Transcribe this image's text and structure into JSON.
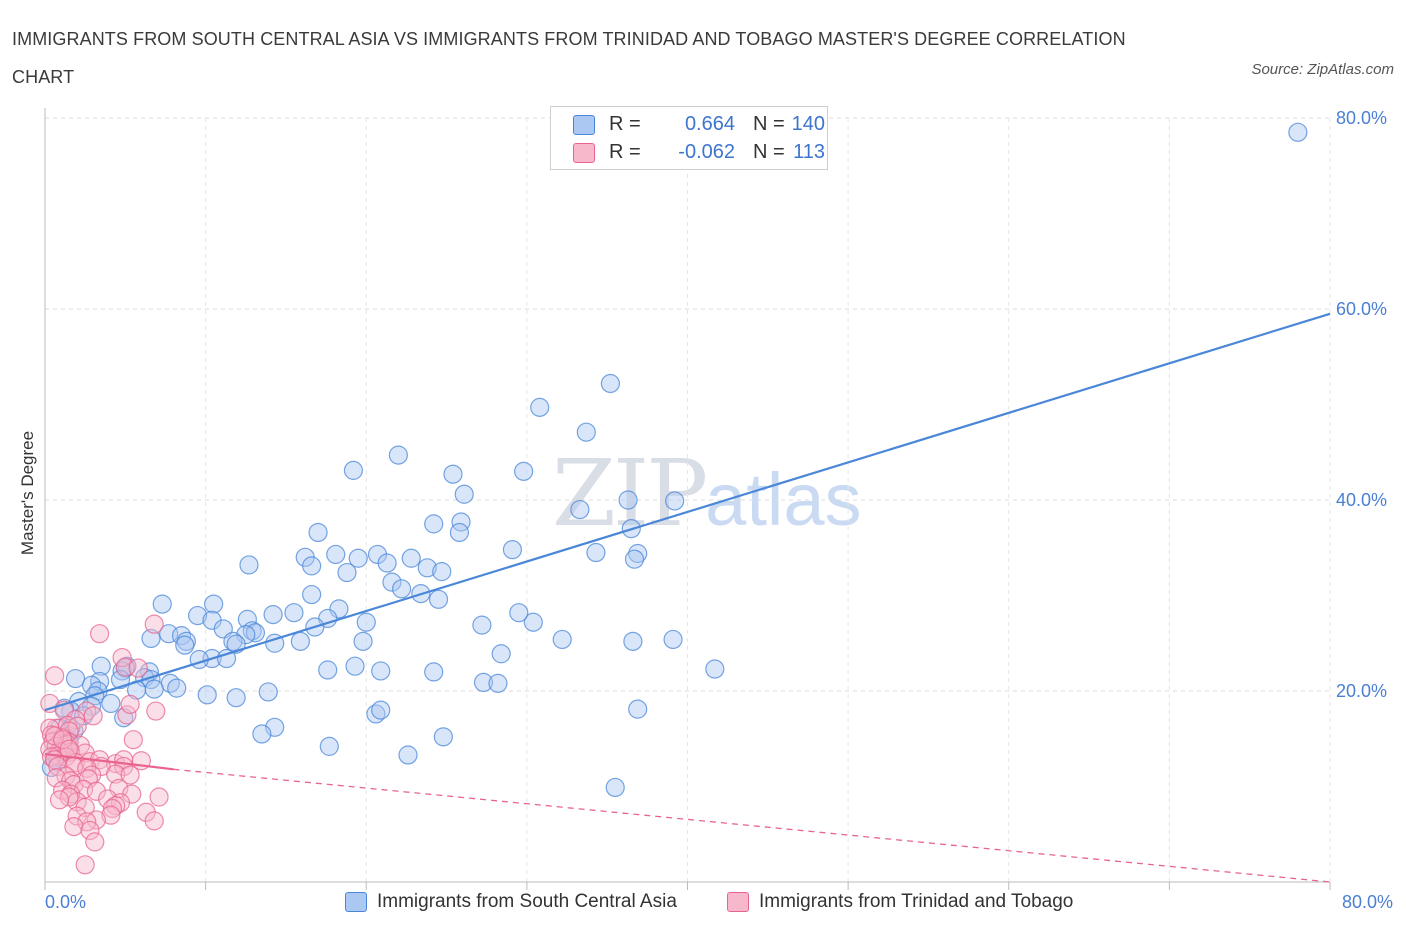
{
  "title": "IMMIGRANTS FROM SOUTH CENTRAL ASIA VS IMMIGRANTS FROM TRINIDAD AND TOBAGO MASTER'S DEGREE CORRELATION CHART",
  "source": "Source: ZipAtlas.com",
  "watermark": {
    "zip": "ZIP",
    "atlas": "atlas"
  },
  "legend": {
    "r_label": "R =",
    "n_label": "N =",
    "series": [
      {
        "r": "0.664",
        "n": "140",
        "color": "#aac8f2"
      },
      {
        "r": "-0.062",
        "n": "113",
        "color": "#f7b8cb"
      }
    ]
  },
  "chart_data": {
    "type": "scatter",
    "title": "IMMIGRANTS FROM SOUTH CENTRAL ASIA VS IMMIGRANTS FROM TRINIDAD AND TOBAGO MASTER'S DEGREE CORRELATION CHART",
    "xlabel": "",
    "ylabel": "Master's Degree",
    "xlim": [
      0,
      80
    ],
    "ylim": [
      0,
      80
    ],
    "x_tick_labels": [
      "0.0%",
      "80.0%"
    ],
    "y_ticks": [
      20,
      40,
      60,
      80
    ],
    "y_tick_labels": [
      "20.0%",
      "40.0%",
      "60.0%",
      "80.0%"
    ],
    "grid": true,
    "legend_position": "top-center",
    "series": [
      {
        "name": "Immigrants from South Central Asia",
        "color": "#4a87d8",
        "fill": "#aac8f2",
        "R": 0.664,
        "N": 140,
        "trend": {
          "x": [
            0,
            80
          ],
          "y": [
            18.0,
            59.5
          ],
          "style": "solid"
        },
        "points": [
          [
            78,
            78.5
          ],
          [
            35.2,
            52.2
          ],
          [
            30.8,
            49.7
          ],
          [
            33.7,
            47.1
          ],
          [
            22,
            44.7
          ],
          [
            19.2,
            43.1
          ],
          [
            25.4,
            42.7
          ],
          [
            29.8,
            43
          ],
          [
            26.1,
            40.6
          ],
          [
            36.3,
            40
          ],
          [
            39.2,
            39.9
          ],
          [
            33.3,
            39
          ],
          [
            24.2,
            37.5
          ],
          [
            25.9,
            37.7
          ],
          [
            36.5,
            37
          ],
          [
            25.8,
            36.6
          ],
          [
            17,
            36.6
          ],
          [
            29.1,
            34.8
          ],
          [
            34.3,
            34.5
          ],
          [
            36.9,
            34.4
          ],
          [
            36.7,
            33.8
          ],
          [
            18.1,
            34.3
          ],
          [
            19.5,
            33.9
          ],
          [
            20.7,
            34.3
          ],
          [
            22.8,
            33.9
          ],
          [
            16.2,
            34
          ],
          [
            21.3,
            33.4
          ],
          [
            12.7,
            33.2
          ],
          [
            16.6,
            33.1
          ],
          [
            23.8,
            32.9
          ],
          [
            24.7,
            32.5
          ],
          [
            18.8,
            32.4
          ],
          [
            21.6,
            31.4
          ],
          [
            22.2,
            30.7
          ],
          [
            23.4,
            30.2
          ],
          [
            24.5,
            29.6
          ],
          [
            16.6,
            30.1
          ],
          [
            18.3,
            28.6
          ],
          [
            10.5,
            29.1
          ],
          [
            15.5,
            28.2
          ],
          [
            14.2,
            28
          ],
          [
            7.3,
            29.1
          ],
          [
            9.5,
            27.9
          ],
          [
            12.6,
            27.5
          ],
          [
            20,
            27.2
          ],
          [
            17.6,
            27.6
          ],
          [
            10.4,
            27.4
          ],
          [
            11.1,
            26.5
          ],
          [
            16.8,
            26.7
          ],
          [
            12.9,
            26.3
          ],
          [
            7.7,
            26
          ],
          [
            8.5,
            25.8
          ],
          [
            13.1,
            26.1
          ],
          [
            12.5,
            25.9
          ],
          [
            6.6,
            25.5
          ],
          [
            15.9,
            25.2
          ],
          [
            14.3,
            25
          ],
          [
            11.7,
            25.2
          ],
          [
            19.8,
            25.2
          ],
          [
            8.8,
            25.2
          ],
          [
            27.2,
            26.9
          ],
          [
            30.4,
            27.2
          ],
          [
            29.5,
            28.2
          ],
          [
            32.2,
            25.4
          ],
          [
            39.1,
            25.4
          ],
          [
            36.6,
            25.2
          ],
          [
            11.9,
            24.9
          ],
          [
            8.7,
            24.8
          ],
          [
            10.4,
            23.4
          ],
          [
            9.6,
            23.3
          ],
          [
            11.3,
            23.4
          ],
          [
            28.4,
            23.9
          ],
          [
            17.6,
            22.2
          ],
          [
            19.3,
            22.6
          ],
          [
            20.9,
            22.1
          ],
          [
            24.2,
            22
          ],
          [
            5,
            22.4
          ],
          [
            5.1,
            22.6
          ],
          [
            6.5,
            22
          ],
          [
            3.5,
            22.6
          ],
          [
            4.8,
            22.1
          ],
          [
            41.7,
            22.3
          ],
          [
            6.2,
            21.4
          ],
          [
            6.6,
            21.2
          ],
          [
            7.8,
            20.8
          ],
          [
            4.7,
            21.2
          ],
          [
            1.9,
            21.3
          ],
          [
            3.4,
            21
          ],
          [
            2.9,
            20.6
          ],
          [
            3.3,
            20
          ],
          [
            6.8,
            20.2
          ],
          [
            8.2,
            20.3
          ],
          [
            10.1,
            19.6
          ],
          [
            11.9,
            19.3
          ],
          [
            13.9,
            19.9
          ],
          [
            27.3,
            20.9
          ],
          [
            28.2,
            20.8
          ],
          [
            5.7,
            20.1
          ],
          [
            3.1,
            19.5
          ],
          [
            2.1,
            18.9
          ],
          [
            2.9,
            18.4
          ],
          [
            1.6,
            17.9
          ],
          [
            2.4,
            17.4
          ],
          [
            4.1,
            18.7
          ],
          [
            1.2,
            18.2
          ],
          [
            4.9,
            17.2
          ],
          [
            36.9,
            18.1
          ],
          [
            20.6,
            17.6
          ],
          [
            20.9,
            18
          ],
          [
            14.3,
            16.2
          ],
          [
            13.5,
            15.5
          ],
          [
            17.7,
            14.2
          ],
          [
            24.8,
            15.2
          ],
          [
            22.6,
            13.3
          ],
          [
            35.5,
            9.9
          ],
          [
            0.7,
            14.2
          ],
          [
            0.6,
            13
          ],
          [
            0.9,
            16.1
          ],
          [
            1.8,
            15.8
          ],
          [
            1.6,
            16.1
          ],
          [
            1.2,
            15.3
          ],
          [
            1.5,
            14.7
          ],
          [
            0.8,
            12.6
          ],
          [
            0.4,
            12
          ],
          [
            1,
            13.6
          ]
        ]
      },
      {
        "name": "Immigrants from Trinidad and Tobago",
        "color": "#e8648e",
        "fill": "#f7b8cb",
        "R": -0.062,
        "N": 113,
        "trend": {
          "x": [
            0,
            8
          ],
          "y": [
            13.4,
            11.8
          ],
          "style": "solid",
          "extension": {
            "x": [
              8,
              80
            ],
            "y": [
              11.8,
              0
            ]
          }
        },
        "points": [
          [
            3.4,
            26
          ],
          [
            6.8,
            27
          ],
          [
            4.8,
            23.5
          ],
          [
            5,
            22.5
          ],
          [
            5.8,
            22.4
          ],
          [
            0.6,
            21.6
          ],
          [
            0.3,
            18.7
          ],
          [
            1.2,
            18
          ],
          [
            2.6,
            17.9
          ],
          [
            3,
            17.4
          ],
          [
            5.1,
            17.5
          ],
          [
            5.3,
            18.6
          ],
          [
            6.9,
            17.9
          ],
          [
            1.9,
            17
          ],
          [
            0.7,
            16.1
          ],
          [
            1.4,
            16.4
          ],
          [
            2,
            16.3
          ],
          [
            0.3,
            16.1
          ],
          [
            1.5,
            15.8
          ],
          [
            0.4,
            15.4
          ],
          [
            1.1,
            15.1
          ],
          [
            1.5,
            14.6
          ],
          [
            0.5,
            14.7
          ],
          [
            1.2,
            14.3
          ],
          [
            0.7,
            14.2
          ],
          [
            1.4,
            14.4
          ],
          [
            2.2,
            14.3
          ],
          [
            0.9,
            13.7
          ],
          [
            0.3,
            13.9
          ],
          [
            1.6,
            13.6
          ],
          [
            0.8,
            13.2
          ],
          [
            1.3,
            13.1
          ],
          [
            2.5,
            13.5
          ],
          [
            0.4,
            13.1
          ],
          [
            0.6,
            12.8
          ],
          [
            1.9,
            12.5
          ],
          [
            0.8,
            12.1
          ],
          [
            1.8,
            12.1
          ],
          [
            2.8,
            12.6
          ],
          [
            3.4,
            12.8
          ],
          [
            4.4,
            12.4
          ],
          [
            4.9,
            12.8
          ],
          [
            3.5,
            12.1
          ],
          [
            6,
            12.7
          ],
          [
            4.9,
            12.1
          ],
          [
            5.5,
            14.9
          ],
          [
            2.6,
            11.9
          ],
          [
            2.9,
            11.2
          ],
          [
            1.3,
            11.1
          ],
          [
            0.7,
            10.9
          ],
          [
            1.6,
            10.6
          ],
          [
            1.8,
            10.2
          ],
          [
            2.7,
            10.8
          ],
          [
            4.4,
            11.3
          ],
          [
            5.3,
            11.2
          ],
          [
            2.4,
            9.7
          ],
          [
            1.1,
            9.6
          ],
          [
            1.6,
            9.2
          ],
          [
            3.2,
            9.5
          ],
          [
            4.6,
            9.8
          ],
          [
            5.4,
            9.2
          ],
          [
            3.9,
            8.7
          ],
          [
            4.7,
            8.3
          ],
          [
            4.4,
            8
          ],
          [
            2,
            8.4
          ],
          [
            7.1,
            8.9
          ],
          [
            1.5,
            8.9
          ],
          [
            0.9,
            8.6
          ],
          [
            2.5,
            7.8
          ],
          [
            4.2,
            7.7
          ],
          [
            6.3,
            7.3
          ],
          [
            4.1,
            7
          ],
          [
            2,
            6.9
          ],
          [
            3.2,
            6.5
          ],
          [
            2.6,
            6.3
          ],
          [
            1.8,
            5.8
          ],
          [
            2.8,
            5.4
          ],
          [
            3.1,
            4.2
          ],
          [
            6.8,
            6.4
          ],
          [
            2.5,
            1.8
          ],
          [
            0.6,
            15.3
          ],
          [
            1.1,
            14.9
          ],
          [
            1.5,
            13.9
          ]
        ]
      }
    ]
  },
  "bottom_legend": [
    "Immigrants from South Central Asia",
    "Immigrants from Trinidad and Tobago"
  ]
}
